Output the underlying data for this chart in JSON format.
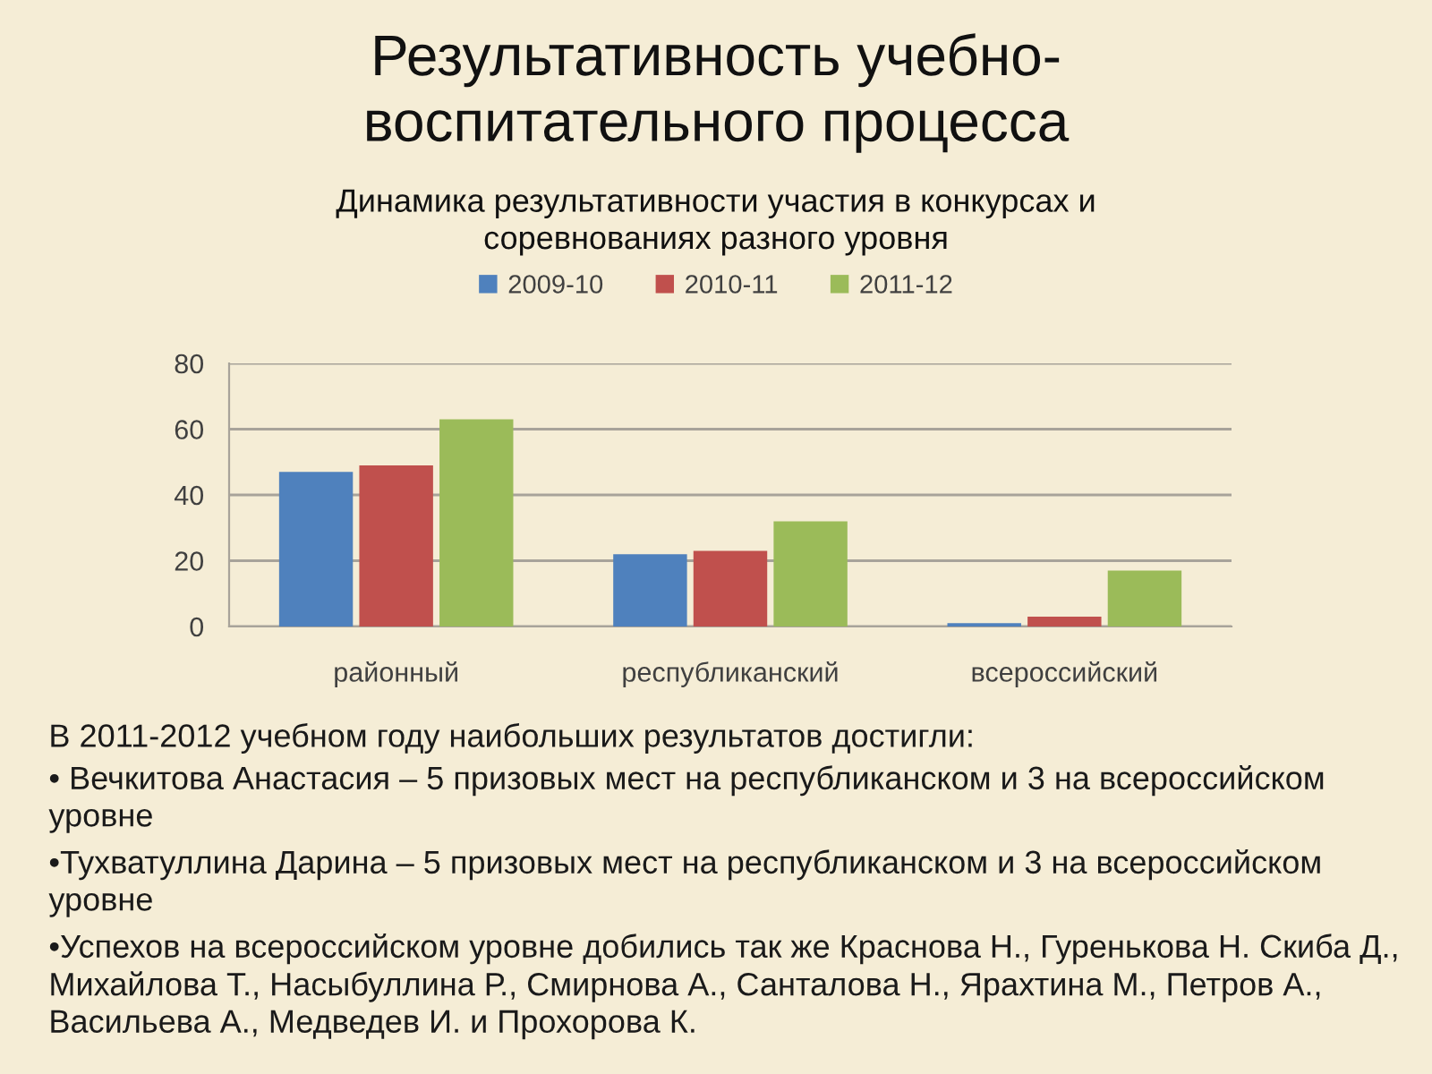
{
  "chart_data": {
    "type": "bar",
    "title": "Результативность учебно-\nвоспитательного процесса",
    "subtitle": "Динамика результативности участия в конкурсах и\nсоревнованиях разного уровня",
    "categories": [
      "районный",
      "республиканский",
      "всероссийский"
    ],
    "series": [
      {
        "name": "2009-10",
        "color": "#4f81bd",
        "values": [
          47,
          22,
          1
        ]
      },
      {
        "name": "2010-11",
        "color": "#c0504d",
        "values": [
          49,
          23,
          3
        ]
      },
      {
        "name": "2011-12",
        "color": "#9bbb59",
        "values": [
          63,
          32,
          17
        ]
      }
    ],
    "ylim": [
      0,
      80
    ],
    "yticks": [
      0,
      20,
      40,
      60,
      80
    ],
    "grid": "y",
    "legend": "top",
    "annotations": [
      "В 2011-2012 учебном году наибольших результатов достигли:",
      "• Вечкитова Анастасия – 5 призовых мест на республиканском и 3 на всероссийском уровне",
      "•Тухватуллина Дарина – 5 призовых мест на республиканском и 3 на всероссийском уровне",
      "•Успехов на всероссийском уровне добились так же Краснова Н., Гуренькова Н. Скиба Д., Михайлова Т., Насыбуллина Р., Смирнова А., Санталова Н., Ярахтина М., Петров А., Васильева А., Медведев И. и Прохорова К."
    ]
  }
}
